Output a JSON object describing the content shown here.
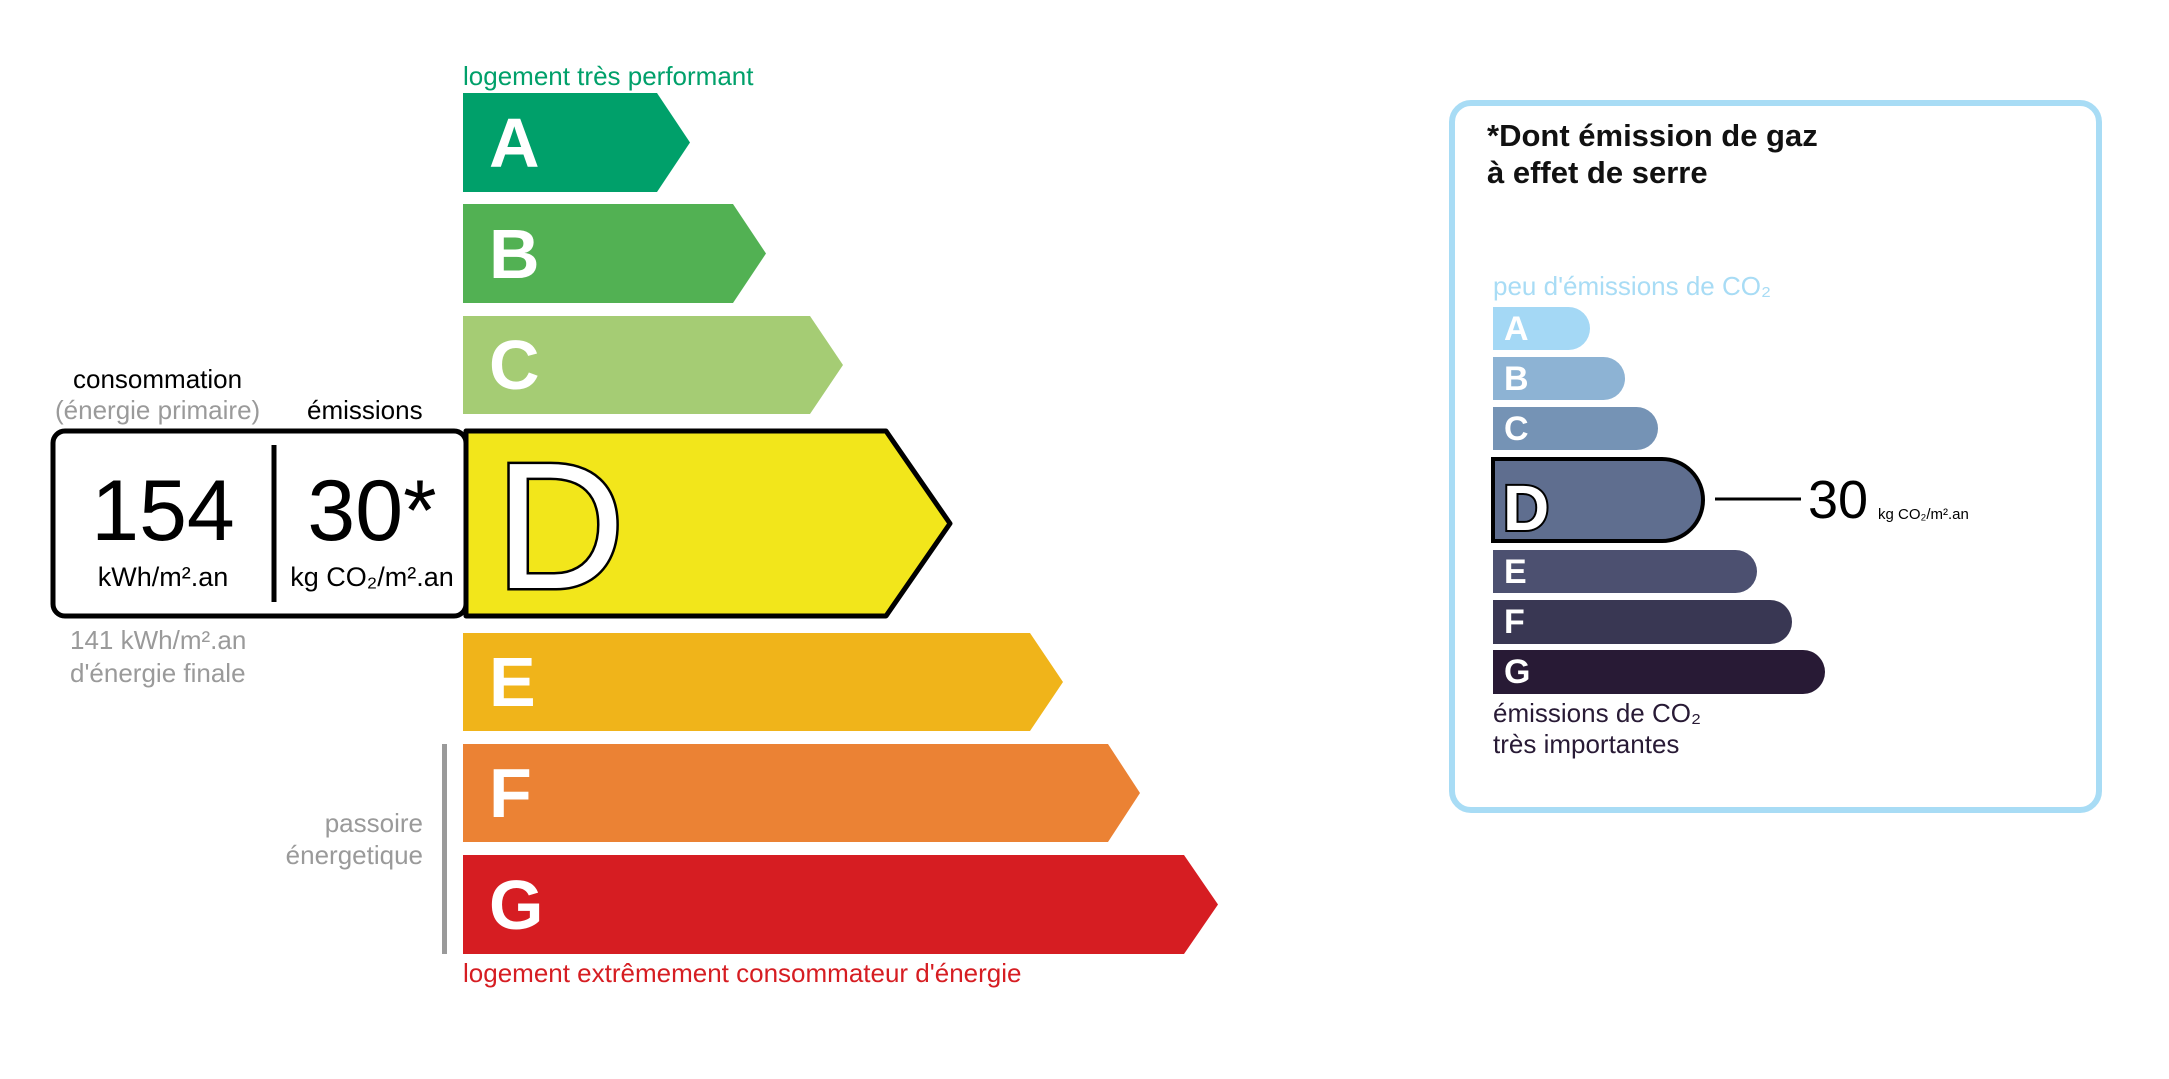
{
  "energy": {
    "top_label": "logement très performant",
    "bottom_label": "logement extrêmement consommateur d'énergie",
    "passoire_label": [
      "passoire",
      "énergetique"
    ],
    "consumption_label": "consommation",
    "consumption_sublabel": "(énergie primaire)",
    "emissions_label": "émissions",
    "consumption_value": "154",
    "consumption_unit": "kWh/m².an",
    "emissions_value": "30*",
    "emissions_unit": "kg CO₂/m².an",
    "final_energy_value": "141 kWh/m².an",
    "final_energy_label": "d'énergie finale",
    "current_class": "D",
    "classes": [
      {
        "letter": "A",
        "color": "#00a06a"
      },
      {
        "letter": "B",
        "color": "#52b153"
      },
      {
        "letter": "C",
        "color": "#a5cc74"
      },
      {
        "letter": "D",
        "color": "#f2e61b"
      },
      {
        "letter": "E",
        "color": "#f0b41a"
      },
      {
        "letter": "F",
        "color": "#eb8234"
      },
      {
        "letter": "G",
        "color": "#d61d22"
      }
    ],
    "top_label_color": "#00a06a",
    "bottom_label_color": "#d61d22"
  },
  "ges": {
    "title_line1": "*Dont émission de gaz",
    "title_line2": "à effet de serre",
    "top_label": "peu d'émissions de CO₂",
    "bottom_label_line1": "émissions de CO₂",
    "bottom_label_line2": "très importantes",
    "current_class": "D",
    "value": "30",
    "unit": "kg CO₂/m².an",
    "border_color": "#a8dcf5",
    "classes": [
      {
        "letter": "A",
        "color": "#a4d8f5"
      },
      {
        "letter": "B",
        "color": "#8db3d4"
      },
      {
        "letter": "C",
        "color": "#7593b5"
      },
      {
        "letter": "D",
        "color": "#5f6e8f"
      },
      {
        "letter": "E",
        "color": "#4c5070"
      },
      {
        "letter": "F",
        "color": "#393753"
      },
      {
        "letter": "G",
        "color": "#281a35"
      }
    ]
  }
}
